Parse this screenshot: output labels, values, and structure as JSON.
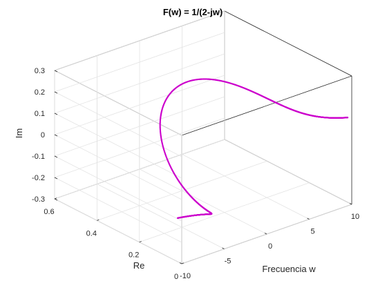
{
  "chart_data": {
    "type": "line3d",
    "title": "F(w) = 1/(2-jw)",
    "xlabel": "Frecuencia w",
    "ylabel": "Re",
    "zlabel": "Im",
    "xlim": [
      -10,
      10
    ],
    "ylim": [
      0,
      0.6
    ],
    "zlim": [
      -0.3,
      0.3
    ],
    "xticks": [
      -10,
      -5,
      0,
      5,
      10
    ],
    "xtick_labels": [
      "-10",
      "-5",
      "0",
      "5",
      "10"
    ],
    "yticks": [
      0,
      0.2,
      0.4,
      0.6
    ],
    "ytick_labels": [
      "0",
      "0.2",
      "0.4",
      "0.6"
    ],
    "zticks": [
      -0.3,
      -0.2,
      -0.1,
      0,
      0.1,
      0.2,
      0.3
    ],
    "ztick_labels": [
      "-0.3",
      "-0.2",
      "-0.1",
      "0",
      "0.1",
      "0.2",
      "0.3"
    ],
    "grid": true,
    "box": true,
    "view": {
      "azimuth": -37.5,
      "elevation": 30
    },
    "series": [
      {
        "function": "F(w) = 1/(2-jw)",
        "x_range": [
          -10,
          10
        ],
        "color": "#cc00cc",
        "marker": "dots"
      }
    ]
  }
}
